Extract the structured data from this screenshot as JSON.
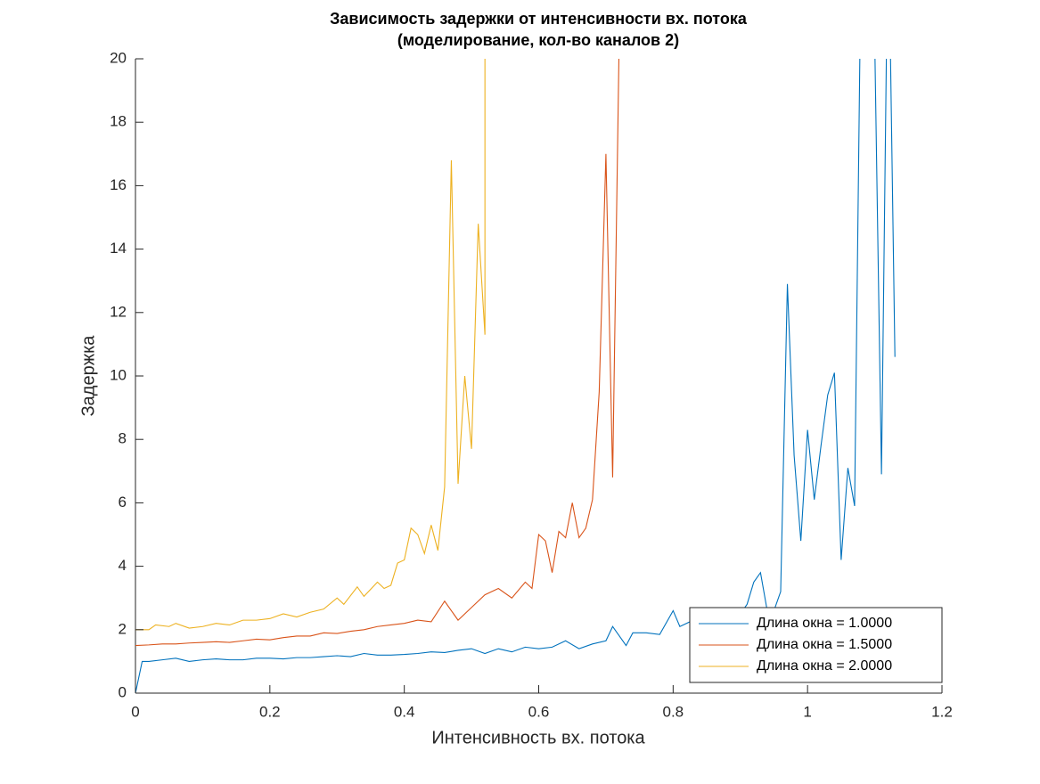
{
  "chart_data": {
    "type": "line",
    "title": "Зависимость задержки от интенсивности вх. потока",
    "subtitle": "(моделирование, кол-во каналов 2)",
    "x_label": "Интенсивность вх. потока",
    "y_label": "Задержка",
    "xlim": [
      0,
      1.2
    ],
    "xticks": [
      0,
      0.2,
      0.4,
      0.6,
      0.8,
      1,
      1.2
    ],
    "ylim": [
      0,
      20
    ],
    "yticks": [
      0,
      2,
      4,
      6,
      8,
      10,
      12,
      14,
      16,
      18,
      20
    ],
    "legend": "lower-right",
    "series": [
      {
        "name": "Длина окна = 1.0000",
        "color": "#0072bd",
        "x": [
          0,
          0.01,
          0.02,
          0.04,
          0.06,
          0.08,
          0.1,
          0.12,
          0.14,
          0.16,
          0.18,
          0.2,
          0.22,
          0.24,
          0.26,
          0.28,
          0.3,
          0.32,
          0.34,
          0.36,
          0.38,
          0.4,
          0.42,
          0.44,
          0.46,
          0.48,
          0.5,
          0.52,
          0.54,
          0.56,
          0.58,
          0.6,
          0.62,
          0.64,
          0.66,
          0.68,
          0.7,
          0.71,
          0.73,
          0.74,
          0.76,
          0.78,
          0.8,
          0.81,
          0.83,
          0.85,
          0.87,
          0.89,
          0.91,
          0.92,
          0.93,
          0.94,
          0.95,
          0.96,
          0.97,
          0.98,
          0.99,
          1,
          1.01,
          1.02,
          1.03,
          1.04,
          1.05,
          1.06,
          1.07,
          1.08,
          1.09,
          1.1,
          1.11,
          1.12,
          1.13
        ],
        "values": [
          0,
          1.0,
          1.0,
          1.05,
          1.1,
          1.0,
          1.05,
          1.08,
          1.05,
          1.05,
          1.1,
          1.1,
          1.08,
          1.12,
          1.12,
          1.15,
          1.18,
          1.15,
          1.25,
          1.2,
          1.2,
          1.22,
          1.25,
          1.3,
          1.28,
          1.35,
          1.4,
          1.25,
          1.4,
          1.3,
          1.45,
          1.4,
          1.45,
          1.65,
          1.4,
          1.55,
          1.65,
          2.1,
          1.5,
          1.9,
          1.9,
          1.85,
          2.6,
          2.1,
          2.3,
          2.2,
          2.4,
          2.2,
          2.8,
          3.5,
          3.8,
          2.6,
          2.6,
          3.2,
          12.9,
          7.5,
          4.8,
          8.3,
          6.1,
          7.8,
          9.4,
          10.1,
          4.2,
          7.1,
          5.9,
          24,
          30,
          20.5,
          6.9,
          25,
          10.6
        ]
      },
      {
        "name": "Длина окна = 1.5000",
        "color": "#d95319",
        "x": [
          0,
          0.02,
          0.04,
          0.06,
          0.08,
          0.1,
          0.12,
          0.14,
          0.16,
          0.18,
          0.2,
          0.22,
          0.24,
          0.26,
          0.28,
          0.3,
          0.32,
          0.34,
          0.36,
          0.38,
          0.4,
          0.42,
          0.44,
          0.46,
          0.48,
          0.5,
          0.52,
          0.54,
          0.56,
          0.58,
          0.59,
          0.6,
          0.61,
          0.62,
          0.63,
          0.64,
          0.65,
          0.66,
          0.67,
          0.68,
          0.69,
          0.7,
          0.71,
          0.72
        ],
        "values": [
          1.5,
          1.52,
          1.55,
          1.55,
          1.58,
          1.6,
          1.62,
          1.6,
          1.65,
          1.7,
          1.68,
          1.75,
          1.8,
          1.8,
          1.9,
          1.88,
          1.95,
          2.0,
          2.1,
          2.15,
          2.2,
          2.3,
          2.25,
          2.9,
          2.3,
          2.7,
          3.1,
          3.3,
          3.0,
          3.5,
          3.3,
          5.0,
          4.8,
          3.8,
          5.1,
          4.9,
          6.0,
          4.9,
          5.2,
          6.1,
          9.5,
          17,
          6.8,
          21
        ]
      },
      {
        "name": "Длина окна = 2.0000",
        "color": "#edb120",
        "x": [
          0,
          0.02,
          0.03,
          0.05,
          0.06,
          0.08,
          0.1,
          0.12,
          0.14,
          0.16,
          0.18,
          0.2,
          0.22,
          0.24,
          0.26,
          0.28,
          0.3,
          0.31,
          0.33,
          0.34,
          0.36,
          0.37,
          0.38,
          0.39,
          0.4,
          0.41,
          0.42,
          0.43,
          0.44,
          0.45,
          0.46,
          0.47,
          0.48,
          0.49,
          0.5,
          0.51,
          0.52,
          0.52
        ],
        "values": [
          2.0,
          2.0,
          2.15,
          2.1,
          2.2,
          2.05,
          2.1,
          2.2,
          2.15,
          2.3,
          2.3,
          2.35,
          2.5,
          2.4,
          2.55,
          2.65,
          3.0,
          2.8,
          3.35,
          3.05,
          3.5,
          3.3,
          3.4,
          4.1,
          4.2,
          5.2,
          5.0,
          4.4,
          5.3,
          4.5,
          6.5,
          16.8,
          6.6,
          10.0,
          7.7,
          14.8,
          11.3,
          22
        ]
      }
    ]
  }
}
